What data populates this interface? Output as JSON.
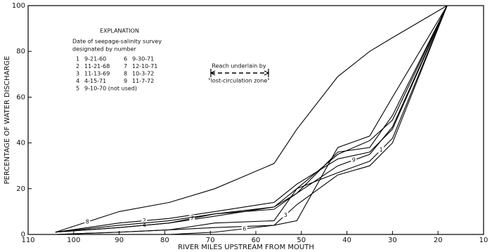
{
  "chart_data": {
    "type": "line",
    "x_label": "RIVER MILES UPSTREAM FROM MOUTH",
    "y_label": "PERCENTAGE OF WATER DISCHARGE",
    "x": [
      104,
      90,
      79,
      69,
      56,
      51,
      42,
      35,
      30,
      18
    ],
    "xlim": [
      110,
      10
    ],
    "ylim": [
      0,
      100
    ],
    "xticks": [
      110,
      100,
      90,
      80,
      70,
      60,
      50,
      40,
      30,
      20,
      10
    ],
    "yticks": [
      0,
      20,
      40,
      60,
      80,
      100
    ],
    "color": "#000000",
    "series": [
      {
        "name": "1",
        "values": [
          0,
          1,
          2,
          5,
          6,
          20,
          27,
          32,
          42,
          100
        ]
      },
      {
        "name": "2",
        "values": [
          1,
          5,
          7,
          10,
          14,
          22,
          33,
          36,
          46,
          100
        ]
      },
      {
        "name": "3",
        "values": [
          0,
          1,
          2,
          3,
          4,
          13,
          26,
          30,
          40,
          100
        ]
      },
      {
        "name": "4",
        "values": [
          1,
          3,
          5,
          8,
          12,
          20,
          35,
          41,
          50,
          100
        ]
      },
      {
        "name": "6",
        "values": [
          0,
          0,
          0,
          1,
          4,
          6,
          38,
          43,
          60,
          100
        ]
      },
      {
        "name": "7",
        "values": [
          1,
          3,
          5,
          9,
          11,
          18,
          36,
          38,
          52,
          100
        ]
      },
      {
        "name": "8",
        "values": [
          1,
          10,
          14,
          20,
          31,
          46,
          69,
          80,
          86,
          100
        ]
      },
      {
        "name": "9",
        "values": [
          1,
          4,
          6,
          9,
          12,
          18,
          30,
          35,
          47,
          100
        ]
      }
    ],
    "explanation": {
      "title": "EXPLANATION",
      "lines": [
        "Date of seepage-salinity survey",
        "designated by number"
      ],
      "entries": [
        [
          "1",
          "9-21-60"
        ],
        [
          "6",
          "9-30-71"
        ],
        [
          "2",
          "11-21-68"
        ],
        [
          "7",
          "12-10-71"
        ],
        [
          "3",
          "11-13-69"
        ],
        [
          "8",
          "10-3-72"
        ],
        [
          "4",
          "4-15-71"
        ],
        [
          "9",
          "11-7-72"
        ],
        [
          "5",
          "9-10-70 (not used)"
        ]
      ]
    },
    "annotation": [
      "Reach underlain by",
      "\"lost-circulation zone\""
    ]
  }
}
